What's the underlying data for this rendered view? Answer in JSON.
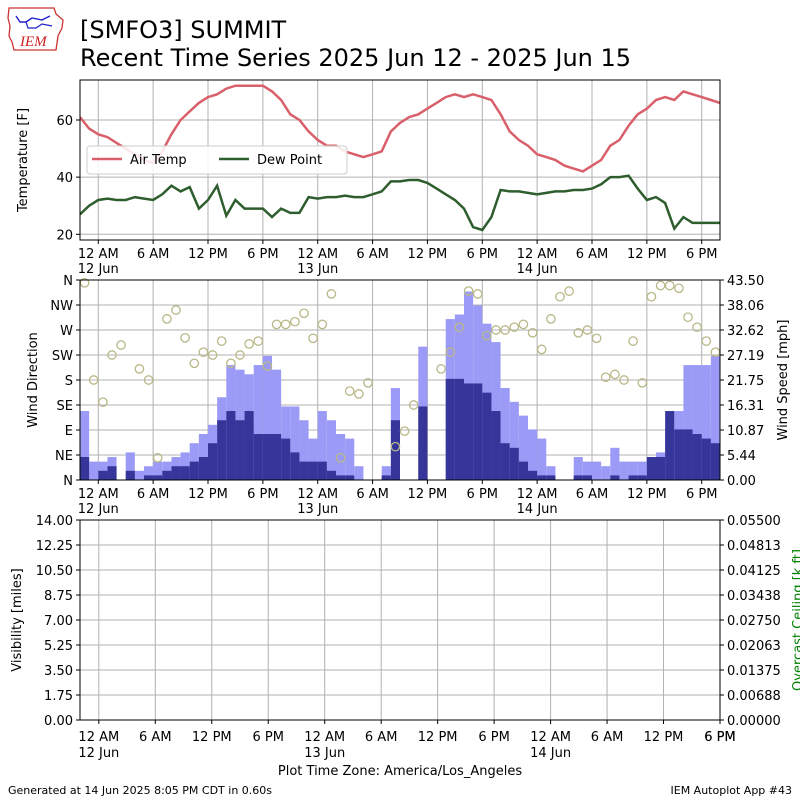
{
  "header": {
    "logo_text": "IEM",
    "title_line1": "[SMFO3] SUMMIT",
    "title_line2": "Recent Time Series 2025 Jun 12 - 2025 Jun 15"
  },
  "footer": {
    "generated": "Generated at 14 Jun 2025 8:05 PM CDT in 0.60s",
    "app": "IEM Autoplot App #43",
    "timezone": "Plot Time Zone: America/Los_Angeles"
  },
  "colors": {
    "air_temp": "#d9606a",
    "dew_point": "#2e5e2e",
    "gust_bar": "#9b9bf7",
    "speed_bar": "#36369a",
    "direction_marker": "#b8b888",
    "ceiling_axis": "#008000",
    "grid": "#b0b0b0"
  },
  "time_axis": {
    "start_hour": 0,
    "tick_labels": [
      {
        "hour": 0,
        "label": "12 AM",
        "date": "12 Jun"
      },
      {
        "hour": 6,
        "label": "6 AM"
      },
      {
        "hour": 12,
        "label": "12 PM"
      },
      {
        "hour": 18,
        "label": "6 PM"
      },
      {
        "hour": 24,
        "label": "12 AM",
        "date": "13 Jun"
      },
      {
        "hour": 30,
        "label": "6 AM"
      },
      {
        "hour": 36,
        "label": "12 PM"
      },
      {
        "hour": 42,
        "label": "6 PM"
      },
      {
        "hour": 48,
        "label": "12 AM",
        "date": "14 Jun"
      },
      {
        "hour": 54,
        "label": "6 AM"
      },
      {
        "hour": 60,
        "label": "12 PM"
      },
      {
        "hour": 66,
        "label": "6 PM"
      }
    ]
  },
  "chart_data": [
    {
      "type": "line",
      "ylabel": "Temperature [F]",
      "ylim": [
        18,
        74
      ],
      "yticks": [
        20,
        40,
        60
      ],
      "xlim": [
        -2,
        68
      ],
      "grid": true,
      "legend": "upper-left",
      "series": [
        {
          "name": "Air Temp",
          "x": [
            -2,
            -1,
            0,
            1,
            2,
            3,
            4,
            5,
            6,
            7,
            8,
            9,
            10,
            11,
            12,
            13,
            14,
            15,
            16,
            17,
            18,
            19,
            20,
            21,
            22,
            23,
            24,
            25,
            26,
            27,
            28,
            29,
            30,
            31,
            32,
            33,
            34,
            35,
            36,
            37,
            38,
            39,
            40,
            41,
            42,
            43,
            44,
            45,
            46,
            47,
            48,
            49,
            50,
            51,
            52,
            53,
            54,
            55,
            56,
            57,
            58,
            59,
            60,
            61,
            62,
            63,
            64,
            65,
            66,
            67,
            68
          ],
          "y": [
            61,
            57,
            55,
            54,
            52,
            50,
            48,
            46,
            45,
            49,
            55,
            60,
            63,
            66,
            68,
            69,
            71,
            72,
            72,
            72,
            72,
            70,
            67,
            62,
            60,
            56,
            53,
            51,
            51,
            49,
            48,
            47,
            48,
            49,
            56,
            59,
            61,
            62,
            64,
            66,
            68,
            69,
            68,
            69,
            68,
            67,
            62,
            56,
            53,
            51,
            48,
            47,
            46,
            44,
            43,
            42,
            44,
            46,
            51,
            53,
            58,
            62,
            64,
            67,
            68,
            67,
            70,
            69,
            68,
            67,
            66
          ]
        },
        {
          "name": "Dew Point",
          "x": [
            -2,
            -1,
            0,
            1,
            2,
            3,
            4,
            5,
            6,
            7,
            8,
            9,
            10,
            11,
            12,
            13,
            14,
            15,
            16,
            17,
            18,
            19,
            20,
            21,
            22,
            23,
            24,
            25,
            26,
            27,
            28,
            29,
            30,
            31,
            32,
            33,
            34,
            35,
            36,
            37,
            38,
            39,
            40,
            41,
            42,
            43,
            44,
            45,
            46,
            47,
            48,
            49,
            50,
            51,
            52,
            53,
            54,
            55,
            56,
            57,
            58,
            59,
            60,
            61,
            62,
            63,
            64,
            65,
            66,
            67,
            68
          ],
          "y": [
            27,
            30,
            32,
            32.5,
            32,
            32,
            33,
            32.5,
            32,
            34,
            37,
            35,
            36.5,
            29,
            32,
            37,
            26.5,
            32,
            29,
            29,
            29,
            26,
            29,
            27.5,
            27.5,
            33,
            32.5,
            33,
            33,
            33.5,
            33,
            33,
            34,
            35,
            38.5,
            38.5,
            39,
            39,
            38,
            36,
            34,
            32,
            29,
            22.5,
            21.5,
            26,
            35.5,
            35,
            35,
            34.5,
            34,
            34.5,
            35,
            35,
            35.5,
            35.5,
            36,
            37.5,
            40,
            40,
            40.5,
            36,
            32,
            33,
            31,
            22,
            26,
            24,
            24,
            24,
            24
          ]
        }
      ]
    },
    {
      "type": "bar",
      "ylabel": "Wind Direction",
      "y2label": "Wind Speed [mph]",
      "direction_labels": [
        "N",
        "NE",
        "E",
        "SE",
        "S",
        "SW",
        "W",
        "NW",
        "N"
      ],
      "speed_ticks": [
        "0.00",
        "5.44",
        "10.87",
        "16.31",
        "21.75",
        "27.19",
        "32.62",
        "38.06",
        "43.50"
      ],
      "speed_lim": [
        0,
        43.5
      ],
      "xlim": [
        -2,
        68
      ],
      "grid": true,
      "series": [
        {
          "name": "gust",
          "x": [
            -2,
            -1,
            0,
            1,
            2,
            3,
            4,
            5,
            6,
            7,
            8,
            9,
            10,
            11,
            12,
            13,
            14,
            15,
            16,
            17,
            18,
            19,
            20,
            21,
            22,
            23,
            24,
            25,
            26,
            27,
            28,
            29,
            30,
            31,
            32,
            33,
            34,
            35,
            36,
            37,
            38,
            39,
            40,
            41,
            42,
            43,
            44,
            45,
            46,
            47,
            48,
            49,
            50,
            51,
            52,
            53,
            54,
            55,
            56,
            57,
            58,
            59,
            60,
            61,
            62,
            63,
            64,
            65,
            66,
            67,
            68
          ],
          "values": [
            15,
            4,
            4,
            5,
            0,
            6,
            2,
            3,
            4,
            4,
            5,
            6,
            8,
            10,
            12,
            18,
            25,
            24,
            23,
            25,
            27,
            24,
            16,
            16,
            13,
            9,
            15,
            13,
            10,
            9,
            3,
            0,
            0,
            3,
            20,
            0,
            0,
            29,
            0,
            0,
            35,
            36,
            41,
            38,
            34,
            30,
            20,
            17,
            14,
            11,
            9,
            3,
            0,
            0,
            5,
            4,
            4,
            3,
            7,
            4,
            4,
            4,
            4,
            6,
            11,
            15,
            25,
            25,
            25,
            27,
            20
          ]
        },
        {
          "name": "speed",
          "x": [
            -2,
            -1,
            0,
            1,
            2,
            3,
            4,
            5,
            6,
            7,
            8,
            9,
            10,
            11,
            12,
            13,
            14,
            15,
            16,
            17,
            18,
            19,
            20,
            21,
            22,
            23,
            24,
            25,
            26,
            27,
            28,
            29,
            30,
            31,
            32,
            33,
            34,
            35,
            36,
            37,
            38,
            39,
            40,
            41,
            42,
            43,
            44,
            45,
            46,
            47,
            48,
            49,
            50,
            51,
            52,
            53,
            54,
            55,
            56,
            57,
            58,
            59,
            60,
            61,
            62,
            63,
            64,
            65,
            66,
            67,
            68
          ],
          "values": [
            5,
            0,
            2,
            3,
            0,
            2,
            0,
            1,
            1,
            2,
            3,
            3,
            4,
            5,
            8,
            13,
            15,
            13,
            15,
            10,
            10,
            10,
            9,
            6,
            4,
            4,
            4,
            2,
            1,
            1,
            0,
            0,
            0,
            1,
            13,
            0,
            0,
            16,
            0,
            0,
            22,
            22,
            21,
            21,
            19,
            15,
            8,
            7,
            4,
            2,
            1,
            1,
            0,
            0,
            1,
            1,
            0,
            0,
            1,
            0,
            1,
            1,
            5,
            5,
            15,
            11,
            11,
            10,
            9,
            8,
            7
          ]
        },
        {
          "name": "direction",
          "x": [
            -2,
            -1,
            0,
            1,
            2,
            4,
            5,
            6,
            7,
            8,
            9,
            10,
            11,
            12,
            13,
            14,
            15,
            16,
            17,
            18,
            19,
            20,
            21,
            22,
            23,
            24,
            25,
            26,
            27,
            28,
            29,
            32,
            33,
            34,
            37,
            38,
            39,
            40,
            41,
            42,
            43,
            44,
            45,
            46,
            47,
            48,
            49,
            50,
            51,
            52,
            53,
            54,
            55,
            56,
            57,
            58,
            59,
            60,
            61,
            62,
            63,
            64,
            65,
            66,
            67,
            68
          ],
          "values": [
            355,
            180,
            140,
            225,
            243,
            200,
            180,
            40,
            290,
            306,
            256,
            210,
            230,
            225,
            250,
            210,
            225,
            245,
            250,
            205,
            280,
            280,
            285,
            300,
            255,
            280,
            335,
            40,
            160,
            155,
            175,
            60,
            88,
            135,
            200,
            230,
            275,
            340,
            335,
            260,
            270,
            270,
            275,
            280,
            265,
            235,
            290,
            330,
            340,
            265,
            270,
            255,
            185,
            190,
            180,
            250,
            175,
            330,
            350,
            350,
            345,
            293,
            275,
            250,
            230,
            90
          ]
        }
      ]
    },
    {
      "type": "line",
      "ylabel": "Visibility [miles]",
      "y2label": "Overcast Ceiling [k ft]",
      "ylim": [
        0,
        14
      ],
      "yticks": [
        "0.00",
        "1.75",
        "3.50",
        "5.25",
        "7.00",
        "8.75",
        "10.50",
        "12.25",
        "14.00"
      ],
      "y2ticks": [
        "0.00000",
        "0.00688",
        "0.01375",
        "0.02063",
        "0.02750",
        "0.03438",
        "0.04125",
        "0.04813",
        "0.05500"
      ],
      "grid": true,
      "series": []
    }
  ]
}
